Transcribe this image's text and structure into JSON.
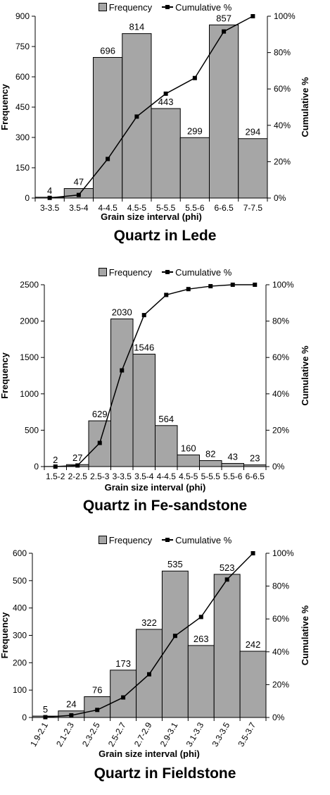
{
  "chart_data": [
    {
      "type": "bar",
      "title": "Quartz in Lede",
      "xlabel": "Grain size interval (phi)",
      "ylabel": "Frequency",
      "y2label": "Cumulative %",
      "categories": [
        "3-3.5",
        "3.5-4",
        "4-4.5",
        "4.5-5",
        "5-5.5",
        "5.5-6",
        "6-6.5",
        "7-7.5"
      ],
      "ylim": [
        0,
        900
      ],
      "yticks": [
        0,
        150,
        300,
        450,
        600,
        750,
        900
      ],
      "y2lim": [
        0,
        100
      ],
      "y2ticks": [
        "0%",
        "20%",
        "40%",
        "60%",
        "80%",
        "100%"
      ],
      "legend_position": "top",
      "x_tick_rotation": 0,
      "series": [
        {
          "name": "Frequency",
          "kind": "bar",
          "color": "#a6a6a6",
          "values": [
            4,
            47,
            696,
            814,
            443,
            299,
            857,
            294
          ]
        },
        {
          "name": "Cumulative %",
          "kind": "line",
          "color": "#000000",
          "values": [
            0.1,
            1.7,
            21.5,
            44.8,
            57.4,
            66.0,
            91.6,
            100
          ]
        }
      ]
    },
    {
      "type": "bar",
      "title": "Quartz in Fe-sandstone",
      "xlabel": "Grain size interval (phi)",
      "ylabel": "Frequency",
      "y2label": "Cumulative %",
      "categories": [
        "1.5-2",
        "2-2.5",
        "2.5-3",
        "3-3.5",
        "3.5-4",
        "4-4.5",
        "4.5-5",
        "5-5.5",
        "5.5-6",
        "6-6.5"
      ],
      "ylim": [
        0,
        2500
      ],
      "yticks": [
        0,
        500,
        1000,
        1500,
        2000,
        2500
      ],
      "y2lim": [
        0,
        100
      ],
      "y2ticks": [
        "0%",
        "20%",
        "40%",
        "60%",
        "80%",
        "100%"
      ],
      "legend_position": "top",
      "x_tick_rotation": 0,
      "series": [
        {
          "name": "Frequency",
          "kind": "bar",
          "color": "#a6a6a6",
          "values": [
            2,
            27,
            629,
            2030,
            1546,
            564,
            160,
            82,
            43,
            23
          ]
        },
        {
          "name": "Cumulative %",
          "kind": "line",
          "color": "#000000",
          "values": [
            0.0,
            0.6,
            13.0,
            52.9,
            83.3,
            94.4,
            97.6,
            99.2,
            100,
            100
          ]
        }
      ]
    },
    {
      "type": "bar",
      "title": "Quartz in Fieldstone",
      "xlabel": "Grain size interval (phi)",
      "ylabel": "Frequency",
      "y2label": "Cumulative %",
      "categories": [
        "1.9-2.1",
        "2.1-2.3",
        "2.3-2.5",
        "2.5-2.7",
        "2.7-2.9",
        "2.9-3.1",
        "3.1-3.3",
        "3.3-3.5",
        "3.5-3.7"
      ],
      "ylim": [
        0,
        600
      ],
      "yticks": [
        0,
        100,
        200,
        300,
        400,
        500,
        600
      ],
      "y2lim": [
        0,
        100
      ],
      "y2ticks": [
        "0%",
        "20%",
        "40%",
        "60%",
        "80%",
        "100%"
      ],
      "legend_position": "top",
      "x_tick_rotation": -60,
      "series": [
        {
          "name": "Frequency",
          "kind": "bar",
          "color": "#a6a6a6",
          "values": [
            5,
            24,
            76,
            173,
            322,
            535,
            263,
            523,
            242
          ]
        },
        {
          "name": "Cumulative %",
          "kind": "line",
          "color": "#000000",
          "values": [
            0.2,
            1.3,
            4.6,
            12.2,
            26.3,
            49.7,
            61.2,
            84.0,
            100
          ]
        }
      ]
    }
  ]
}
